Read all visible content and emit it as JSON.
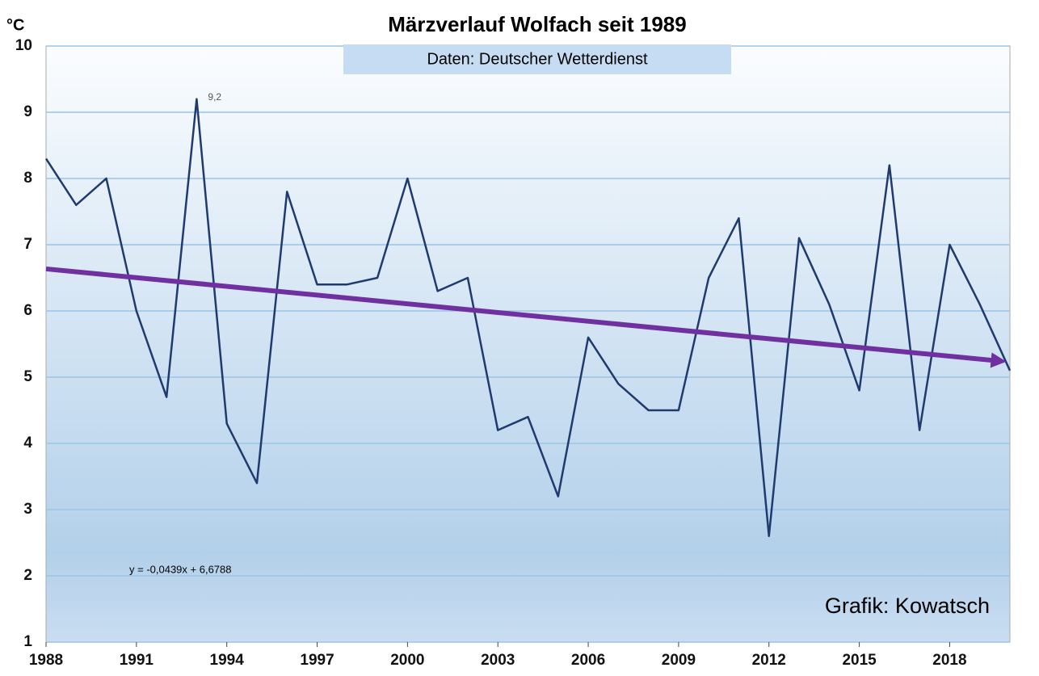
{
  "chart_data": {
    "type": "line",
    "title": "Märzverlauf Wolfach seit 1989",
    "subtitle": "Daten: Deutscher Wetterdienst",
    "ylabel": "°C",
    "credit": "Grafik: Kowatsch",
    "x": [
      1988,
      1989,
      1990,
      1991,
      1992,
      1993,
      1994,
      1995,
      1996,
      1997,
      1998,
      1999,
      2000,
      2001,
      2002,
      2003,
      2004,
      2005,
      2006,
      2007,
      2008,
      2009,
      2010,
      2011,
      2012,
      2013,
      2014,
      2015,
      2016,
      2017,
      2018,
      2019,
      2020
    ],
    "series": [
      {
        "name": null,
        "color": "#1f3a6e",
        "values": [
          8.3,
          7.6,
          8.0,
          6.0,
          4.7,
          9.2,
          4.3,
          3.4,
          7.8,
          6.4,
          6.4,
          6.5,
          8.0,
          6.3,
          6.5,
          4.2,
          4.4,
          3.2,
          5.6,
          4.9,
          4.5,
          4.5,
          6.5,
          7.4,
          2.6,
          7.1,
          6.1,
          4.8,
          8.2,
          4.2,
          7.0,
          6.1,
          5.1
        ],
        "value_labels": [
          null,
          null,
          null,
          null,
          null,
          "9,2",
          null,
          null,
          null,
          null,
          null,
          null,
          null,
          null,
          null,
          null,
          null,
          null,
          null,
          null,
          null,
          null,
          null,
          null,
          null,
          null,
          null,
          null,
          null,
          null,
          null,
          null,
          null
        ]
      }
    ],
    "trendline": {
      "slope": -0.0439,
      "intercept": 6.6788,
      "label": "y = -0,0439x + 6,6788",
      "color": "#7030a0"
    },
    "xlim": [
      1988,
      2020
    ],
    "xticks": [
      1988,
      1991,
      1994,
      1997,
      2000,
      2003,
      2006,
      2009,
      2012,
      2015,
      2018
    ],
    "ylim": [
      1,
      10
    ],
    "yticks": [
      1,
      2,
      3,
      4,
      5,
      6,
      7,
      8,
      9,
      10
    ],
    "grid": true
  }
}
